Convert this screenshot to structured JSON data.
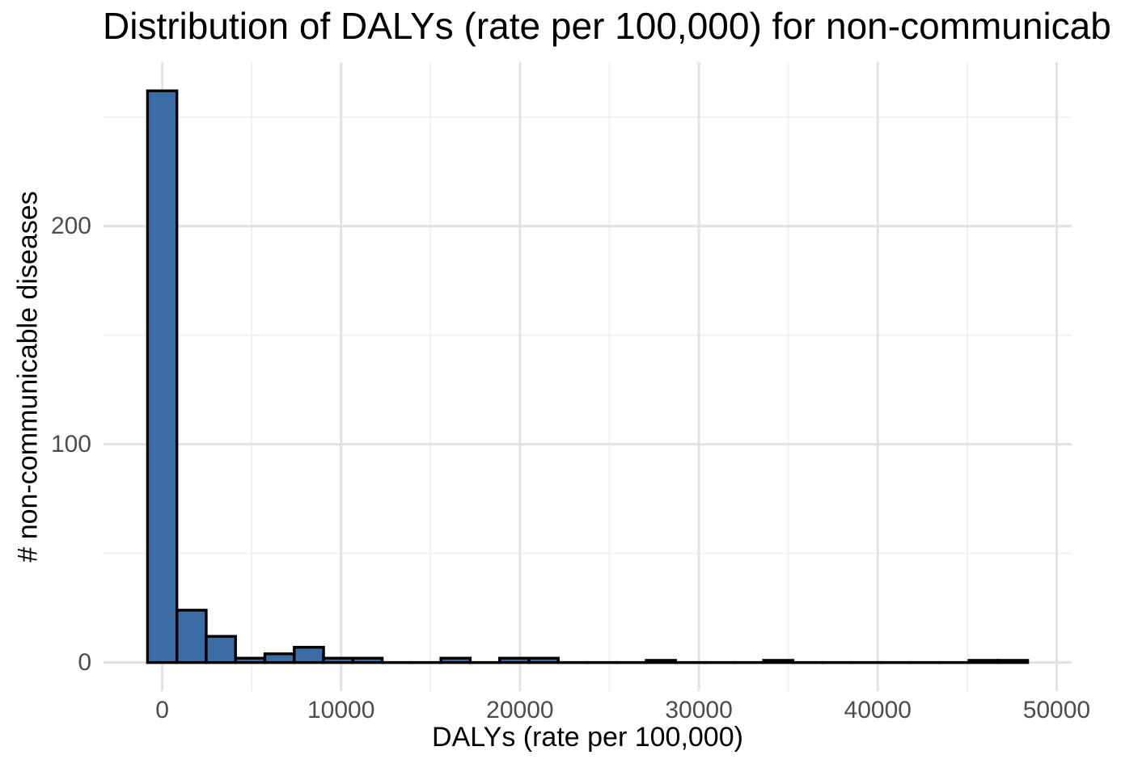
{
  "title": "Distribution of DALYs (rate per 100,000) for non-communicab",
  "colors": {
    "background": "#ffffff",
    "bar_fill": "#3c6ca6",
    "bar_stroke": "#000000",
    "grid_major": "#e2e2e2",
    "grid_minor": "#f0f0f0",
    "tick_label": "#4d4d4d",
    "title_text": "#000000"
  },
  "chart_data": {
    "type": "bar",
    "subtype": "histogram",
    "title": "Distribution of DALYs (rate per 100,000) for non-communicab",
    "xlabel": "DALYs (rate per 100,000)",
    "ylabel": "# non-communicable diseases",
    "bin_width": 1640,
    "bin_start": -820,
    "counts": [
      262,
      24,
      12,
      2,
      4,
      7,
      2,
      2,
      0,
      0,
      2,
      0,
      2,
      2,
      0,
      0,
      0,
      1,
      0,
      0,
      0,
      1,
      0,
      0,
      0,
      0,
      0,
      0,
      1,
      1
    ],
    "x_ticks": [
      0,
      10000,
      20000,
      30000,
      40000,
      50000
    ],
    "x_tick_labels": [
      "0",
      "10000",
      "20000",
      "30000",
      "40000",
      "50000"
    ],
    "x_minor_ticks": [
      5000,
      15000,
      25000,
      35000,
      45000
    ],
    "y_ticks": [
      0,
      100,
      200
    ],
    "y_tick_labels": [
      "0",
      "100",
      "200"
    ],
    "y_minor_ticks": [
      50,
      150,
      250
    ],
    "xlim": [
      -3280,
      50840
    ],
    "ylim": [
      -13.1,
      275.1
    ],
    "grid": true,
    "legend": "none"
  }
}
